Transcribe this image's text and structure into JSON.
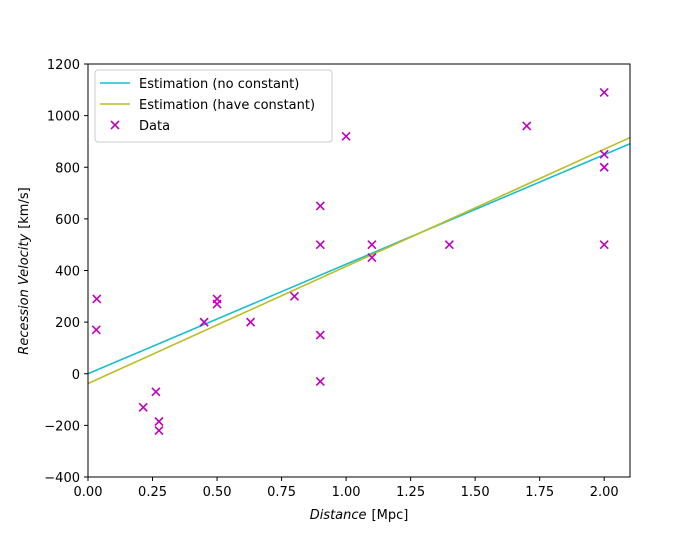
{
  "chart_data": {
    "type": "scatter",
    "xlabel_italic": "Distance",
    "xlabel_unit": "[Mpc]",
    "ylabel_italic": "Recession Velocity",
    "ylabel_unit": "[km/s]",
    "xlim": [
      0.0,
      2.1
    ],
    "ylim": [
      -400,
      1200
    ],
    "xticks": [
      0.0,
      0.25,
      0.5,
      0.75,
      1.0,
      1.25,
      1.5,
      1.75,
      2.0
    ],
    "xtick_labels": [
      "0.00",
      "0.25",
      "0.50",
      "0.75",
      "1.00",
      "1.25",
      "1.50",
      "1.75",
      "2.00"
    ],
    "yticks": [
      -400,
      -200,
      0,
      200,
      400,
      600,
      800,
      1000,
      1200
    ],
    "ytick_labels": [
      "−400",
      "−200",
      "0",
      "200",
      "400",
      "600",
      "800",
      "1000",
      "1200"
    ],
    "grid": false,
    "legend_position": "top-left",
    "series": [
      {
        "name": "Estimation (no constant)",
        "kind": "line",
        "color": "#17becf",
        "x": [
          0.0,
          2.1
        ],
        "y": [
          0,
          891
        ]
      },
      {
        "name": "Estimation (have constant)",
        "kind": "line",
        "color": "#bcbd22",
        "x": [
          0.0,
          2.1
        ],
        "y": [
          -38,
          915
        ]
      },
      {
        "name": "Data",
        "kind": "scatter",
        "marker": "x",
        "color": "#bf00bf",
        "points": [
          [
            0.032,
            170
          ],
          [
            0.034,
            290
          ],
          [
            0.214,
            -130
          ],
          [
            0.263,
            -70
          ],
          [
            0.275,
            -185
          ],
          [
            0.275,
            -220
          ],
          [
            0.45,
            200
          ],
          [
            0.5,
            290
          ],
          [
            0.5,
            270
          ],
          [
            0.63,
            200
          ],
          [
            0.8,
            300
          ],
          [
            0.9,
            -30
          ],
          [
            0.9,
            650
          ],
          [
            0.9,
            150
          ],
          [
            0.9,
            500
          ],
          [
            1.0,
            920
          ],
          [
            1.1,
            450
          ],
          [
            1.1,
            500
          ],
          [
            1.4,
            500
          ],
          [
            1.7,
            960
          ],
          [
            2.0,
            500
          ],
          [
            2.0,
            850
          ],
          [
            2.0,
            800
          ],
          [
            2.0,
            1090
          ]
        ]
      }
    ]
  }
}
